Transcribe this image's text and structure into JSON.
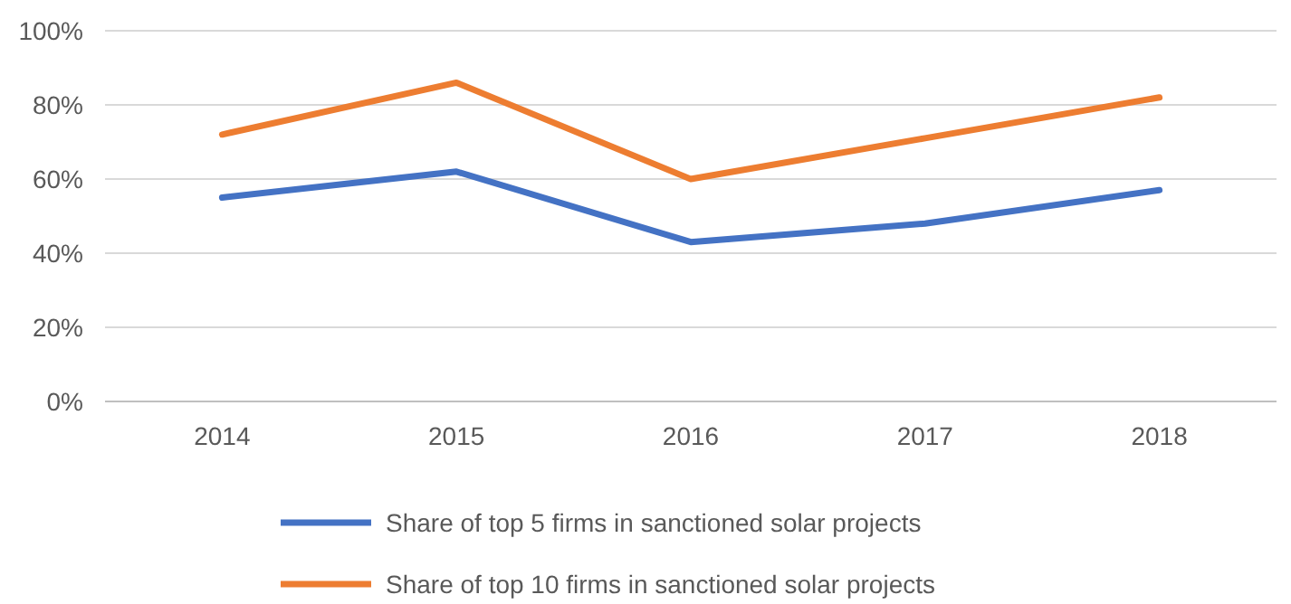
{
  "chart_data": {
    "type": "line",
    "categories": [
      "2014",
      "2015",
      "2016",
      "2017",
      "2018"
    ],
    "series": [
      {
        "name": "Share of top 5 firms in sanctioned solar projects",
        "color": "#4472c4",
        "values": [
          55,
          62,
          43,
          48,
          57
        ]
      },
      {
        "name": "Share of top 10 firms in sanctioned solar projects",
        "color": "#ed7d31",
        "values": [
          72,
          86,
          60,
          71,
          82
        ]
      }
    ],
    "ylim": [
      0,
      100
    ],
    "yticks": [
      {
        "value": 0,
        "label": "0%"
      },
      {
        "value": 20,
        "label": "20%"
      },
      {
        "value": 40,
        "label": "40%"
      },
      {
        "value": 60,
        "label": "60%"
      },
      {
        "value": 80,
        "label": "80%"
      },
      {
        "value": 100,
        "label": "100%"
      }
    ],
    "grid": "y",
    "legend": "bottom",
    "marker": "none",
    "line_style": "solid"
  }
}
